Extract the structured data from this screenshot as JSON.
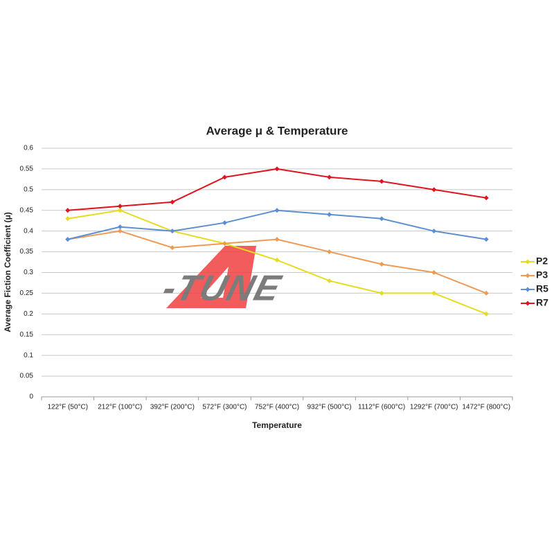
{
  "chart_data": {
    "type": "line",
    "title": "Average μ & Temperature",
    "x_label": "Temperature",
    "y_label": "Average Fiction Coefficient (μ)",
    "watermark": "-TUNE",
    "categories": [
      "122°F (50°C)",
      "212°F (100°C)",
      "392°F (200°C)",
      "572°F (300°C)",
      "752°F (400°C)",
      "932°F (500°C)",
      "1112°F (600°C)",
      "1292°F (700°C)",
      "1472°F (800°C)"
    ],
    "series": [
      {
        "name": "P2",
        "color": "#e6dc1e",
        "values": [
          0.43,
          0.45,
          0.4,
          0.37,
          0.33,
          0.28,
          0.25,
          0.25,
          0.2
        ]
      },
      {
        "name": "P3",
        "color": "#ee9a55",
        "values": [
          0.38,
          0.4,
          0.36,
          0.37,
          0.38,
          0.35,
          0.32,
          0.3,
          0.25
        ]
      },
      {
        "name": "R5",
        "color": "#5b8fd2",
        "values": [
          0.38,
          0.41,
          0.4,
          0.42,
          0.45,
          0.44,
          0.43,
          0.4,
          0.38
        ]
      },
      {
        "name": "R7",
        "color": "#e0141e",
        "values": [
          0.45,
          0.46,
          0.47,
          0.53,
          0.55,
          0.53,
          0.52,
          0.5,
          0.48
        ]
      }
    ],
    "ylim": [
      0,
      0.6
    ],
    "yticks": [
      0,
      0.05,
      0.1,
      0.15,
      0.2,
      0.25,
      0.3,
      0.35,
      0.4,
      0.45,
      0.5,
      0.55,
      0.6
    ],
    "grid": true,
    "legend": "right"
  }
}
